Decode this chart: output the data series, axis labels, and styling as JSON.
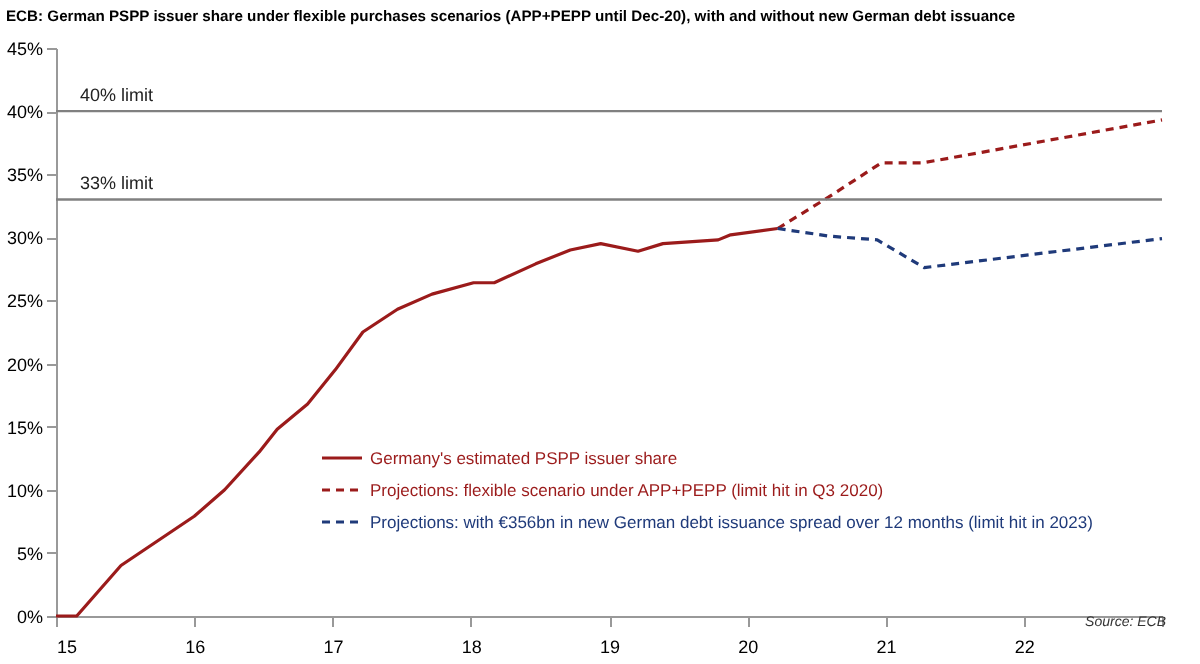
{
  "chart_data": {
    "type": "line",
    "title": "ECB: German PSPP issuer share under flexible purchases scenarios (APP+PEPP until Dec-20), with and without new German debt issuance",
    "xlim": [
      15,
      23
    ],
    "xticks": [
      15,
      16,
      17,
      18,
      19,
      20,
      21,
      22,
      {
        "value": 23,
        "label": null
      }
    ],
    "ylim": [
      0,
      45
    ],
    "yticks": [
      {
        "value": 0,
        "label": "0%"
      },
      {
        "value": 5,
        "label": "5%"
      },
      {
        "value": 10,
        "label": "10%"
      },
      {
        "value": 15,
        "label": "15%"
      },
      {
        "value": 20,
        "label": "20%"
      },
      {
        "value": 25,
        "label": "25%"
      },
      {
        "value": 30,
        "label": "30%"
      },
      {
        "value": 35,
        "label": "35%"
      },
      {
        "value": 40,
        "label": "40%"
      },
      {
        "value": 45,
        "label": "45%"
      }
    ],
    "grid": false,
    "legend": "bottom",
    "series": [
      {
        "name": "Germany's estimated PSPP issuer share",
        "color": "#9b1b1b",
        "line_style": "solid",
        "x": [
          15,
          15.15,
          15.47,
          16,
          16.22,
          16.47,
          16.6,
          16.82,
          17.02,
          17.22,
          17.47,
          17.72,
          18.02,
          18.17,
          18.47,
          18.72,
          18.94,
          19.21,
          19.39,
          19.79,
          19.88,
          20.22
        ],
        "values": [
          0,
          0,
          4,
          7.9,
          10,
          13,
          14.8,
          16.8,
          19.5,
          22.5,
          24.3,
          25.5,
          26.4,
          26.4,
          27.9,
          29,
          29.5,
          28.9,
          29.5,
          29.8,
          30.2,
          30.7
        ]
      },
      {
        "name": "Projections: flexible scenario under APP+PEPP (limit hit in Q3 2020)",
        "color": "#9b1b1b",
        "line_style": "dashed",
        "x": [
          20.22,
          20.59,
          20.97,
          21.27,
          23
        ],
        "values": [
          30.7,
          33.2,
          35.9,
          35.9,
          39.3
        ]
      },
      {
        "name": "Projections: with €356bn in new German debt issuance spread over 12 months (limit hit in 2023)",
        "color": "#1f3a7a",
        "line_style": "dashed",
        "x": [
          20.22,
          20.59,
          20.94,
          21.28,
          23
        ],
        "values": [
          30.7,
          30.1,
          29.8,
          27.6,
          29.9
        ]
      }
    ],
    "ref_lines": [
      {
        "axis": "y",
        "value": 40,
        "label": "40% limit",
        "color": "#808080"
      },
      {
        "axis": "y",
        "value": 33,
        "label": "33% limit",
        "color": "#808080"
      }
    ],
    "annotations": [
      "Source: ECB"
    ]
  }
}
